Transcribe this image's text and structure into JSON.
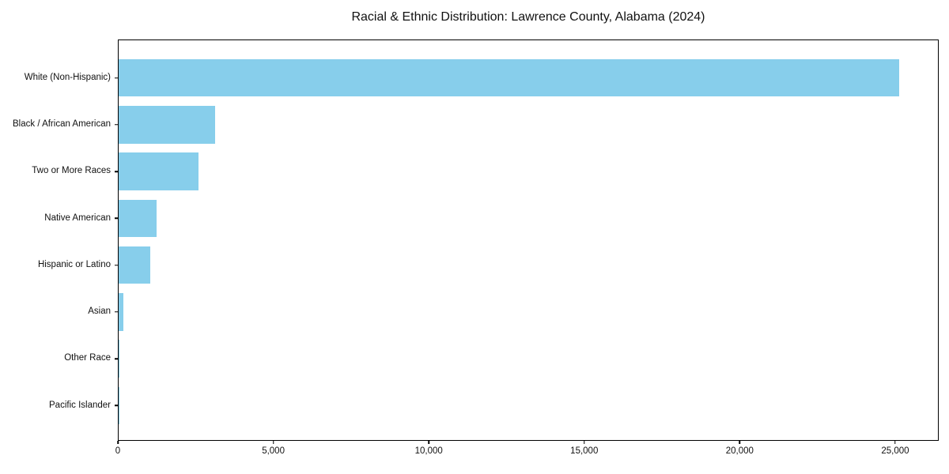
{
  "chart_data": {
    "type": "bar",
    "orientation": "horizontal",
    "title": "Racial & Ethnic Distribution: Lawrence County, Alabama (2024)",
    "xlabel": "",
    "ylabel": "",
    "categories": [
      "White (Non-Hispanic)",
      "Black / African American",
      "Two or More Races",
      "Native American",
      "Hispanic or Latino",
      "Asian",
      "Other Race",
      "Pacific Islander"
    ],
    "values": [
      25150,
      3120,
      2570,
      1230,
      1030,
      145,
      25,
      5
    ],
    "xlim": [
      0,
      26400
    ],
    "x_ticks": [
      0,
      5000,
      10000,
      15000,
      20000,
      25000
    ],
    "x_tick_labels": [
      "0",
      "5,000",
      "10,000",
      "15,000",
      "20,000",
      "25,000"
    ],
    "bar_color": "#87CEEB",
    "grid": false,
    "legend": null,
    "background_color": "#ffffff",
    "spine_color": "#000000"
  }
}
